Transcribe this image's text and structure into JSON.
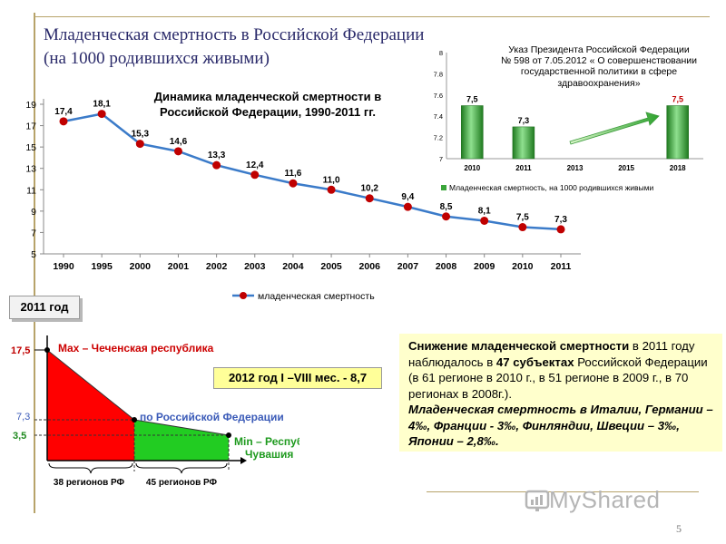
{
  "slide": {
    "title_line1": "Младенческая смертность в Российской Федерации",
    "title_line2": "(на 1000 родившихся живыми)",
    "page_number": "5",
    "watermark": "MyShared"
  },
  "colors": {
    "line": "#3b7bc9",
    "marker": "#c00000",
    "bar": "#3aa53a",
    "region_red": "#ff0000",
    "region_green": "#22cc22",
    "title": "#2a2a6a"
  },
  "chart_data": [
    {
      "type": "line",
      "title": "Динамика младенческой смертности в Российской Федерации, 1990-2011 гг.",
      "title_line1": "Динамика младенческой смертности в",
      "title_line2": "Российской Федерации, 1990-2011 гг.",
      "categories": [
        "1990",
        "1995",
        "2000",
        "2001",
        "2002",
        "2003",
        "2004",
        "2005",
        "2006",
        "2007",
        "2008",
        "2009",
        "2010",
        "2011"
      ],
      "series": [
        {
          "name": "младенческая смертность",
          "values": [
            17.4,
            18.1,
            15.3,
            14.6,
            13.3,
            12.4,
            11.6,
            11.0,
            10.2,
            9.4,
            8.5,
            8.1,
            7.5,
            7.3
          ]
        }
      ],
      "value_labels": [
        "17,4",
        "18,1",
        "15,3",
        "14,6",
        "13,3",
        "12,4",
        "11,6",
        "11,0",
        "10,2",
        "9,4",
        "8,5",
        "8,1",
        "7,5",
        "7,3"
      ],
      "y_ticks": [
        "5",
        "7",
        "9",
        "11",
        "13",
        "15",
        "17",
        "19"
      ],
      "ylim": [
        5,
        19
      ],
      "legend_position": "bottom"
    },
    {
      "type": "bar",
      "title_line1": "Указ Президента Российской Федерации",
      "title_line2": "№ 598 от 7.05.2012 « О совершенствовании",
      "title_line3": "государственной политики в сфере",
      "title_line4": "здравоохранения»",
      "categories": [
        "2010",
        "2011",
        "2013",
        "2015",
        "2018"
      ],
      "series": [
        {
          "name": "Младенческая смертность, на 1000 родившихся живыми",
          "values": [
            7.5,
            7.3,
            null,
            null,
            7.5
          ]
        }
      ],
      "value_labels": [
        "7,5",
        "7,3",
        "",
        "",
        "7,5"
      ],
      "y_ticks": [
        "7",
        "7.2",
        "7.4",
        "7.6",
        "7.8",
        "8"
      ],
      "ylim": [
        7,
        8
      ],
      "legend_position": "bottom"
    },
    {
      "type": "area",
      "labels": {
        "max": "Max – Чеченская республика",
        "avg": "по Российской Федерации",
        "min_line1": "Min – Республика",
        "min_line2": "Чувашия",
        "group1": "38 регионов РФ",
        "group2": "45 регионов РФ"
      },
      "y_values": {
        "max": 17.5,
        "avg": 7.3,
        "min": 3.5
      },
      "y_labels": [
        "17,5",
        "7,3",
        "3,5"
      ],
      "regions": [
        38,
        45
      ]
    }
  ],
  "tags": {
    "year_2011": "2011 год",
    "year_2012": "2012 год I –VIII мес.  - 8,7"
  },
  "textbox": {
    "p1_bold": "Снижение младенческой смертности",
    "p1_a": " в 2011 году наблюдалось в ",
    "p1_bold2": "47 субъектах",
    "p1_b": " Российской Федерации (в 61 регионе в 2010 г., в 51 регионе в 2009 г., в 70 регионах в 2008г.).",
    "p2": "Младенческая смертность в Италии, Германии – 4‰, Франции - 3‰, Финляндии, Швеции – 3‰, Японии – 2,8‰."
  }
}
